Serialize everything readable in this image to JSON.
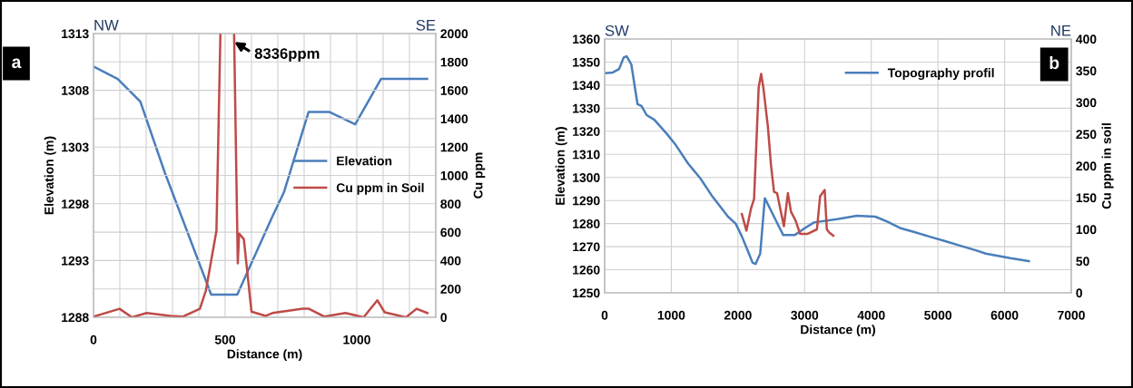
{
  "chart_data": [
    {
      "type": "line",
      "xlabel": "Distance (m)",
      "ylabel": "Elevation (m)",
      "y2label": "Cu ppm",
      "xlim": [
        0,
        1300
      ],
      "xticks": [
        0,
        {
          "value": 100,
          "label": null
        },
        {
          "value": 200,
          "label": null
        },
        {
          "value": 300,
          "label": null
        },
        {
          "value": 400,
          "label": null
        },
        500,
        {
          "value": 600,
          "label": null
        },
        {
          "value": 700,
          "label": null
        },
        {
          "value": 800,
          "label": null
        },
        {
          "value": 900,
          "label": null
        },
        1000,
        {
          "value": 1100,
          "label": null
        },
        {
          "value": 1200,
          "label": null
        },
        {
          "value": 1300,
          "label": null
        }
      ],
      "ylim": [
        1288,
        1313
      ],
      "yticks": [
        1288,
        1293,
        1298,
        1303,
        1308,
        1313
      ],
      "y2lim": [
        0,
        2000
      ],
      "y2ticks": [
        0,
        200,
        400,
        600,
        800,
        1000,
        1200,
        1400,
        1600,
        1800,
        2000
      ],
      "grid": true,
      "legend": "right",
      "marker": "none",
      "line_style": "solid",
      "series": [
        {
          "name": "Elevation",
          "color": "#4a7ebb",
          "x": [
            0,
            92,
            178,
            270,
            447,
            546,
            678,
            723,
            817,
            895,
            994,
            1092,
            1267
          ],
          "values": [
            1310.1,
            1309.0,
            1307.0,
            1300.8,
            1290.0,
            1290.0,
            1296.8,
            1299.0,
            1306.1,
            1306.1,
            1305.0,
            1309.0,
            1309.0
          ]
        },
        {
          "name": "Cu ppm in Soil",
          "color": "#be4b48",
          "axis": "y2",
          "x": [
            0,
            99,
            146,
            202,
            294,
            340,
            404,
            427,
            467,
            482,
            508,
            534,
            548,
            553,
            571,
            600,
            654,
            680,
            795,
            818,
            876,
            957,
            1026,
            1078,
            1106,
            1187,
            1227,
            1268
          ],
          "values": [
            5,
            60,
            0,
            30,
            10,
            5,
            60,
            190,
            610,
            2000,
            null,
            2000,
            380,
            590,
            550,
            40,
            10,
            30,
            60,
            60,
            5,
            30,
            0,
            120,
            35,
            0,
            60,
            30
          ]
        }
      ],
      "annotations": [
        "NW",
        "SE",
        "a",
        "8336ppm"
      ]
    },
    {
      "type": "line",
      "xlabel": "Distance (m)",
      "ylabel": "Elevation (m)",
      "y2label": "Cu ppm in soil",
      "xlim": [
        0,
        7000
      ],
      "xticks": [
        0,
        1000,
        2000,
        3000,
        4000,
        5000,
        6000,
        7000
      ],
      "ylim": [
        1250,
        1360
      ],
      "yticks": [
        1250,
        1260,
        1270,
        1280,
        1290,
        1300,
        1310,
        1320,
        1330,
        1340,
        1350,
        1360
      ],
      "y2lim": [
        0,
        400
      ],
      "y2ticks": [
        0,
        50,
        100,
        150,
        200,
        250,
        300,
        350,
        400
      ],
      "grid": true,
      "legend": "top right",
      "marker": "none",
      "line_style": "solid",
      "series": [
        {
          "name": "Topography profil",
          "color": "#4a7ebb",
          "x": [
            0,
            124,
            217,
            286,
            331,
            400,
            493,
            552,
            631,
            746,
            930,
            1068,
            1253,
            1436,
            1620,
            1851,
            1965,
            2058,
            2151,
            2220,
            2265,
            2334,
            2403,
            2541,
            2680,
            2850,
            3001,
            3140,
            3508,
            3785,
            4061,
            4245,
            4429,
            4659,
            4890,
            5120,
            5350,
            5580,
            5718,
            5902,
            6087,
            6363
          ],
          "values": [
            1345.2,
            1345.5,
            1347,
            1352,
            1352.5,
            1349,
            1331.8,
            1331,
            1327,
            1325,
            1319,
            1314,
            1306,
            1299.6,
            1291.6,
            1283,
            1280,
            1274.5,
            1268,
            1263,
            1262.5,
            1267,
            1291,
            1283,
            1275,
            1275,
            1278,
            1280.5,
            1282,
            1283.4,
            1283,
            1280.8,
            1278.1,
            1276.2,
            1274.2,
            1272.3,
            1270.3,
            1268.3,
            1267,
            1266,
            1265,
            1263.7
          ]
        },
        {
          "color": "#be4b48",
          "axis": "y2",
          "x": [
            2058,
            2127,
            2196,
            2242,
            2311,
            2348,
            2380,
            2449,
            2495,
            2541,
            2587,
            2634,
            2689,
            2749,
            2795,
            2864,
            2932,
            3047,
            3185,
            3232,
            3301,
            3333,
            3370,
            3430
          ],
          "values": [
            124,
            98,
            133,
            148,
            324,
            345,
            324,
            262,
            202,
            159,
            157,
            133,
            105,
            157,
            128,
            114,
            93,
            93,
            100,
            152,
            162,
            100,
            95,
            90
          ]
        }
      ],
      "annotations": [
        "SW",
        "NE",
        "b"
      ]
    }
  ]
}
